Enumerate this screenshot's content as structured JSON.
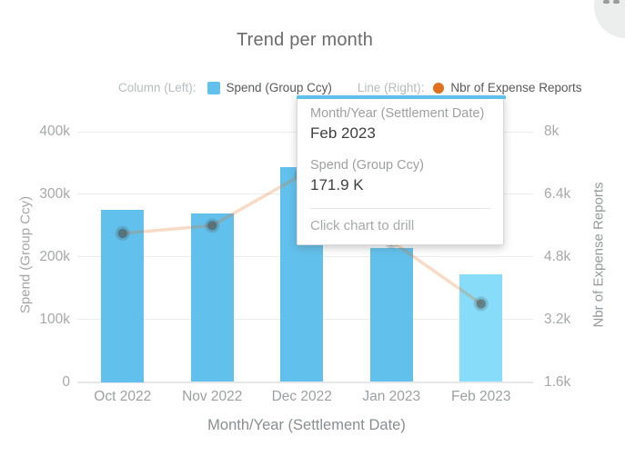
{
  "title": "Trend per month",
  "legend": {
    "column_label": "Column (Left):",
    "column_series": "Spend (Group Ccy)",
    "line_label": "Line (Right):",
    "line_series": "Nbr of Expense Reports"
  },
  "colors": {
    "bar": "#62c1ec",
    "bar_highlight": "#87dcfa",
    "legend_line_dot": "#e2711d",
    "line_dimmed": "rgba(226,113,29,0.25)",
    "marker_dimmed": "rgba(70,70,65,0.5)",
    "tooltip_accent": "#5fc0ec"
  },
  "tooltip": {
    "header_label": "Month/Year (Settlement Date)",
    "header_value": "Feb 2023",
    "metric_label": "Spend (Group Ccy)",
    "metric_value": "171.9 K",
    "footer": "Click chart to drill"
  },
  "chart_data": {
    "type": "bar+line combo",
    "title": "Trend per month",
    "categories": [
      "Oct 2022",
      "Nov 2022",
      "Dec 2022",
      "Jan 2023",
      "Feb 2023"
    ],
    "series": [
      {
        "name": "Spend (Group Ccy)",
        "type": "bar",
        "axis": "left",
        "values": [
          275000,
          270000,
          344000,
          214000,
          171900
        ],
        "highlighted_index": 4,
        "note": "Feb 2023 bar highlighted by hover; tooltip shows 171.9 K"
      },
      {
        "name": "Nbr of Expense Reports",
        "type": "line",
        "axis": "right",
        "values": [
          5400,
          5600,
          6900,
          5200,
          3600
        ],
        "state": "dimmed while column series is hovered; Dec/Jan points hidden behind tooltip"
      }
    ],
    "left_axis": {
      "label": "Spend (Group Ccy)",
      "min": 0,
      "max": 400000,
      "ticks": [
        "0",
        "100k",
        "200k",
        "300k",
        "400k"
      ]
    },
    "right_axis": {
      "label": "Nbr of Expense Reports",
      "min": 1600,
      "max": 8000,
      "ticks": [
        "1.6k",
        "3.2k",
        "4.8k",
        "6.4k",
        "8k"
      ]
    },
    "x_axis": {
      "label": "Month/Year (Settlement Date)"
    },
    "grid": true,
    "legend_position": "top"
  }
}
